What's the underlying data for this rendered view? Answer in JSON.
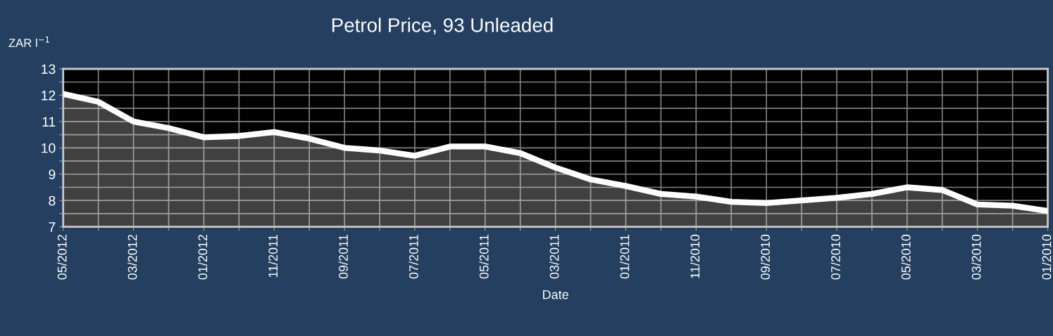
{
  "chart_data": {
    "type": "area",
    "title": "Petrol Price, 93 Unleaded",
    "xlabel": "Date",
    "ylabel": "ZAR l$^{−1}$",
    "categories": [
      "05/2012",
      null,
      "03/2012",
      null,
      "01/2012",
      null,
      "11/2011",
      null,
      "09/2011",
      null,
      "07/2011",
      null,
      "05/2011",
      null,
      "03/2011",
      null,
      "01/2011",
      null,
      "11/2010",
      null,
      "09/2010",
      null,
      "07/2010",
      null,
      "05/2010",
      null,
      "03/2010",
      null,
      "01/2010"
    ],
    "series": [
      {
        "color": "#ffffff",
        "values": [
          12.05,
          11.75,
          11.0,
          10.75,
          10.4,
          10.45,
          10.6,
          10.35,
          10.0,
          9.9,
          9.7,
          10.05,
          10.05,
          9.8,
          9.25,
          8.8,
          8.55,
          8.25,
          8.15,
          7.95,
          7.9,
          8.0,
          8.1,
          8.25,
          8.5,
          8.4,
          7.85,
          7.8,
          7.6
        ]
      }
    ],
    "ylim": [
      7,
      13
    ],
    "yticks": [
      7,
      {
        "value": 7.5,
        "label": null
      },
      8,
      {
        "value": 8.5,
        "label": null
      },
      9,
      {
        "value": 9.5,
        "label": null
      },
      10,
      {
        "value": 10.5,
        "label": null
      },
      11,
      {
        "value": 11.5,
        "label": null
      },
      12,
      {
        "value": 12.5,
        "label": null
      },
      13
    ],
    "grid": true,
    "legend": false
  }
}
